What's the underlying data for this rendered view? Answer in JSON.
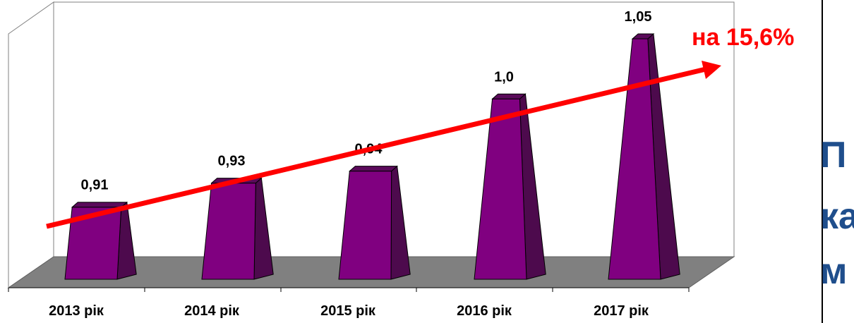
{
  "chart_data": {
    "type": "bar",
    "style": "3d-pyramid",
    "categories": [
      "2013 рік",
      "2014 рік",
      "2015 рік",
      "2016 рік",
      "2017 рік"
    ],
    "values": [
      0.91,
      0.93,
      0.94,
      1.0,
      1.05
    ],
    "value_labels": [
      "0,91",
      "0,93",
      "0,94",
      "1,0",
      "1,05"
    ],
    "title": "",
    "xlabel": "",
    "ylabel": "",
    "ylim": [
      0.85,
      1.06
    ],
    "grid": false,
    "legend": "none",
    "trend_annotation": "на 15,6%"
  },
  "colors": {
    "bar_front": "#800080",
    "bar_side": "#4d0a4d",
    "bar_top": "#5a0a5a",
    "floor": "#808080",
    "trend_arrow": "#ff0000",
    "side_text": "#1f4e8c"
  },
  "side_panel": {
    "lines": [
      "П",
      "ка",
      "м"
    ]
  }
}
